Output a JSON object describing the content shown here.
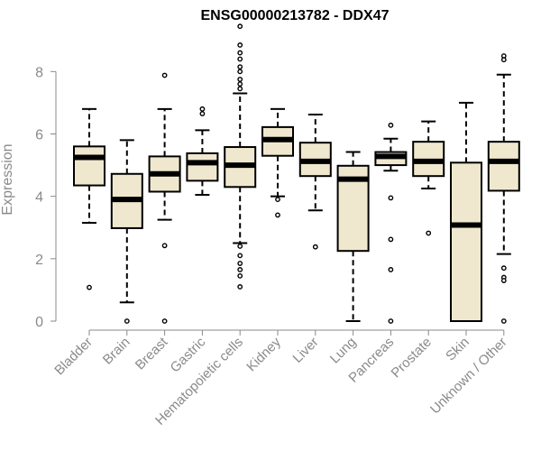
{
  "chart_data": {
    "type": "boxplot",
    "title": "ENSG00000213782 - DDX47",
    "xlabel": "",
    "ylabel": "Expression",
    "ylim": [
      0,
      9.6
    ],
    "yticks": [
      0,
      2,
      4,
      6,
      8
    ],
    "box_fill": "#efe8cf",
    "categories": [
      "Bladder",
      "Brain",
      "Breast",
      "Gastric",
      "Hematopoietic cells",
      "Kidney",
      "Liver",
      "Lung",
      "Pancreas",
      "Prostate",
      "Skin",
      "Unknown / Other"
    ],
    "boxes": [
      {
        "name": "Bladder",
        "whisker_low": 3.15,
        "q1": 4.35,
        "median": 5.25,
        "q3": 5.6,
        "whisker_high": 6.8,
        "outliers": [
          1.08
        ]
      },
      {
        "name": "Brain",
        "whisker_low": 0.6,
        "q1": 2.98,
        "median": 3.9,
        "q3": 4.72,
        "whisker_high": 5.8,
        "outliers": [
          0.0
        ]
      },
      {
        "name": "Breast",
        "whisker_low": 3.25,
        "q1": 4.15,
        "median": 4.72,
        "q3": 5.28,
        "whisker_high": 6.8,
        "outliers": [
          7.88,
          2.42,
          0.0
        ]
      },
      {
        "name": "Gastric",
        "whisker_low": 4.05,
        "q1": 4.5,
        "median": 5.08,
        "q3": 5.38,
        "whisker_high": 6.12,
        "outliers": [
          6.65,
          6.8
        ]
      },
      {
        "name": "Hematopoietic cells",
        "whisker_low": 2.5,
        "q1": 4.3,
        "median": 5.0,
        "q3": 5.58,
        "whisker_high": 7.3,
        "outliers": [
          9.45,
          8.85,
          8.6,
          8.4,
          8.15,
          8.0,
          7.75,
          7.6,
          7.45,
          2.4,
          2.1,
          1.85,
          1.65,
          1.45,
          1.1
        ]
      },
      {
        "name": "Kidney",
        "whisker_low": 4.0,
        "q1": 5.3,
        "median": 5.82,
        "q3": 6.22,
        "whisker_high": 6.8,
        "outliers": [
          3.9,
          3.4
        ]
      },
      {
        "name": "Liver",
        "whisker_low": 3.55,
        "q1": 4.65,
        "median": 5.12,
        "q3": 5.72,
        "whisker_high": 6.62,
        "outliers": [
          2.38
        ]
      },
      {
        "name": "Lung",
        "whisker_low": 0.0,
        "q1": 2.25,
        "median": 4.55,
        "q3": 4.98,
        "whisker_high": 5.42,
        "outliers": []
      },
      {
        "name": "Pancreas",
        "whisker_low": 4.82,
        "q1": 5.0,
        "median": 5.28,
        "q3": 5.42,
        "whisker_high": 5.85,
        "outliers": [
          6.28,
          3.95,
          2.62,
          1.65,
          0.0
        ]
      },
      {
        "name": "Prostate",
        "whisker_low": 4.25,
        "q1": 4.65,
        "median": 5.12,
        "q3": 5.75,
        "whisker_high": 6.4,
        "outliers": [
          2.82
        ]
      },
      {
        "name": "Skin",
        "whisker_low": 0.0,
        "q1": 0.0,
        "median": 3.08,
        "q3": 5.08,
        "whisker_high": 7.0,
        "outliers": []
      },
      {
        "name": "Unknown / Other",
        "whisker_low": 2.15,
        "q1": 4.18,
        "median": 5.12,
        "q3": 5.75,
        "whisker_high": 7.9,
        "outliers": [
          8.5,
          8.38,
          1.7,
          1.4,
          1.3,
          0.0
        ]
      }
    ]
  }
}
